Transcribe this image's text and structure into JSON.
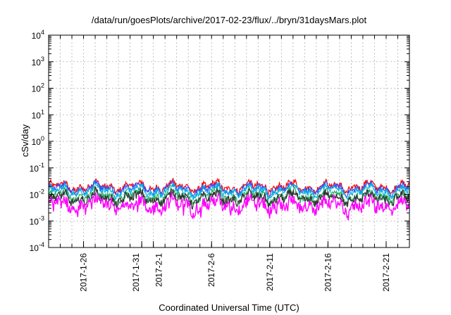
{
  "chart_data": {
    "type": "line",
    "title": "/data/run/goesPlots/archive/2017-02-23/flux/../bryn/31daysMars.plot",
    "xlabel": "Coordinated Universal Time (UTC)",
    "ylabel": "cSv/day",
    "yscale": "log",
    "ylim": [
      0.0001,
      10000
    ],
    "yticks": [
      {
        "base": "10",
        "exp": "-4",
        "value": 0.0001
      },
      {
        "base": "10",
        "exp": "-3",
        "value": 0.001
      },
      {
        "base": "10",
        "exp": "-2",
        "value": 0.01
      },
      {
        "base": "10",
        "exp": "-1",
        "value": 0.1
      },
      {
        "base": "10",
        "exp": "0",
        "value": 1
      },
      {
        "base": "10",
        "exp": "1",
        "value": 10
      },
      {
        "base": "10",
        "exp": "2",
        "value": 100
      },
      {
        "base": "10",
        "exp": "3",
        "value": 1000
      },
      {
        "base": "10",
        "exp": "4",
        "value": 10000
      }
    ],
    "xlim": [
      "2017-01-23",
      "2017-02-23"
    ],
    "xticks": [
      "2017-1-26",
      "2017-1-31",
      "2017-2-1",
      "2017-2-6",
      "2017-2-11",
      "2017-2-16",
      "2017-2-21"
    ],
    "grid": true,
    "series": [
      {
        "color": "#ff0000",
        "typical": 0.0195,
        "spread": 0.22
      },
      {
        "color": "#3050ff",
        "typical": 0.0165,
        "spread": 0.22
      },
      {
        "color": "#00b0e0",
        "typical": 0.0135,
        "spread": 0.22
      },
      {
        "color": "#20b060",
        "typical": 0.0085,
        "spread": 0.28
      },
      {
        "color": "#303030",
        "typical": 0.0072,
        "spread": 0.3
      },
      {
        "color": "#ff00ff",
        "typical": 0.004,
        "spread": 0.45
      }
    ]
  }
}
